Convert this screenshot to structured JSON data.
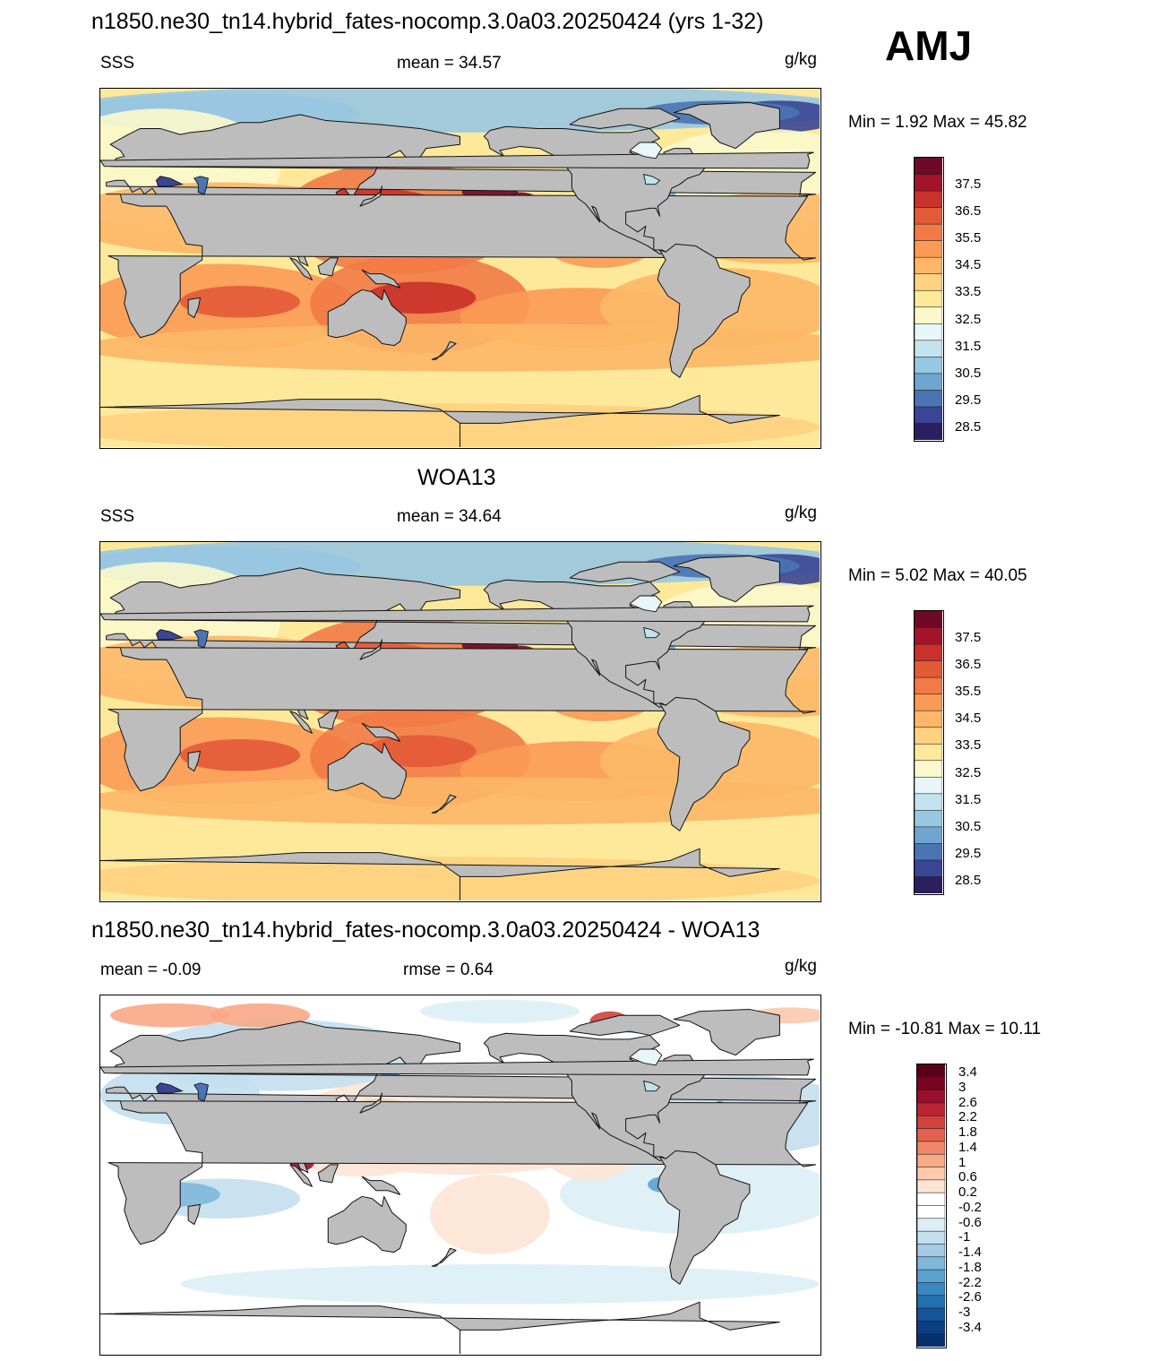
{
  "season": "AMJ",
  "colors": {
    "land": "#bdbdbd",
    "abs_scale": [
      "#2b1f5e",
      "#3a4595",
      "#4a74b4",
      "#6fa6d0",
      "#98c7e1",
      "#c3e3ee",
      "#e9f6f9",
      "#fbf8cc",
      "#fee99a",
      "#fed281",
      "#fdb767",
      "#fb9a55",
      "#f27a46",
      "#e35a37",
      "#c9312a",
      "#a3142a",
      "#6e0a27"
    ],
    "diff_scale": [
      "#08306b",
      "#0b3f82",
      "#14559c",
      "#2370b0",
      "#3a88c0",
      "#5ba1cf",
      "#7fb8da",
      "#a3cce4",
      "#c4dfed",
      "#ddeef6",
      "#ffffff",
      "#ffffff",
      "#fde4d5",
      "#fcc9ad",
      "#f8a986",
      "#f0876a",
      "#e3614f",
      "#d3423c",
      "#bc2431",
      "#9c0f2c",
      "#7a0520",
      "#5a001a"
    ]
  },
  "panels": [
    {
      "title": "n1850.ne30_tn14.hybrid_fates-nocomp.3.0a03.20250424 (yrs 1-32)",
      "left": "SSS",
      "center": "mean =  34.57",
      "right": "g/kg",
      "minmax": "Min =   1.92 Max =  45.82",
      "colorbar": [
        "37.5",
        "36.5",
        "35.5",
        "34.5",
        "33.5",
        "32.5",
        "31.5",
        "30.5",
        "29.5",
        "28.5"
      ]
    },
    {
      "title": "WOA13",
      "left": "SSS",
      "center": "mean =  34.64",
      "right": "g/kg",
      "minmax": "Min =   5.02 Max =  40.05",
      "colorbar": [
        "37.5",
        "36.5",
        "35.5",
        "34.5",
        "33.5",
        "32.5",
        "31.5",
        "30.5",
        "29.5",
        "28.5"
      ]
    },
    {
      "title": "n1850.ne30_tn14.hybrid_fates-nocomp.3.0a03.20250424 - WOA13",
      "left": "mean =  -0.09",
      "center": "rmse =   0.64",
      "right": "g/kg",
      "minmax": "Min = -10.81 Max =  10.11",
      "colorbar": [
        "3.4",
        "3",
        "2.6",
        "2.2",
        "1.8",
        "1.4",
        "1",
        "0.6",
        "0.2",
        "-0.2",
        "-0.6",
        "-1",
        "-1.4",
        "-1.8",
        "-2.2",
        "-2.6",
        "-3",
        "-3.4"
      ]
    }
  ]
}
